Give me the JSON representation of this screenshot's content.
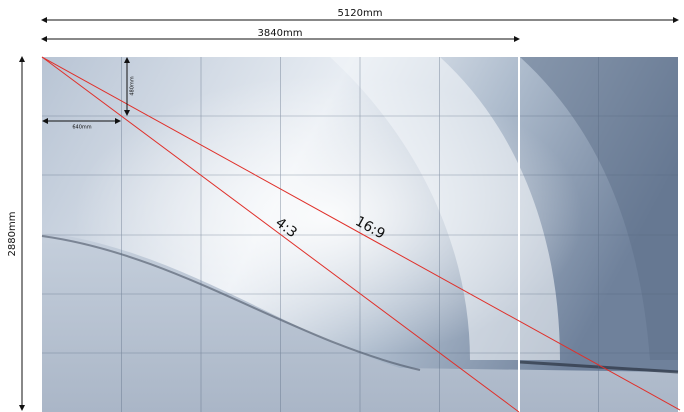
{
  "dimensions": {
    "total_width": "5120mm",
    "width_4_3": "3840mm",
    "height": "2880mm",
    "module_width": "640mm",
    "module_height": "480mm"
  },
  "ratios": {
    "ratio_4_3": "4:3",
    "ratio_16_9": "16:9"
  }
}
